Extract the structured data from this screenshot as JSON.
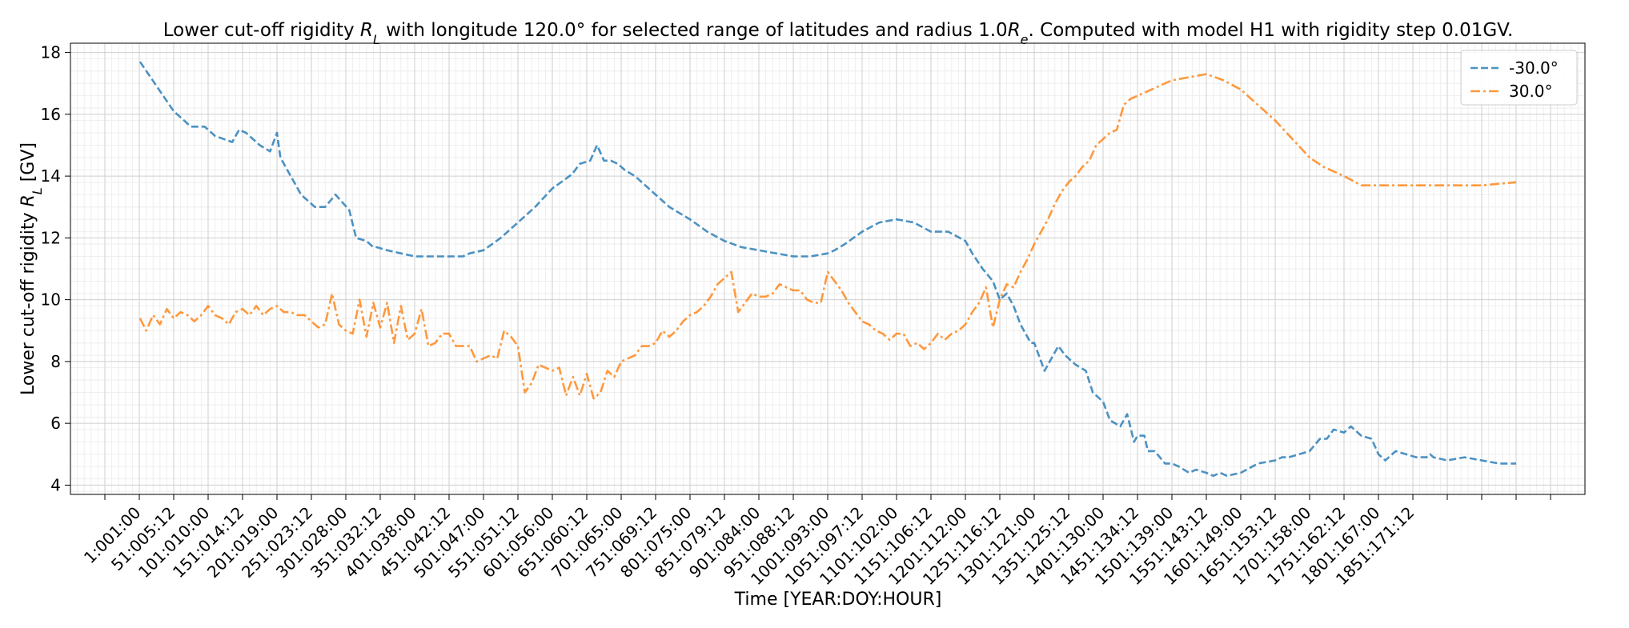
{
  "chart_data": {
    "type": "line",
    "title": "Lower cut-off rigidity R_L with longitude 120.0° for selected range of latitudes and radius 1.0R_e. Computed with model H1 with rigidity step 0.01GV.",
    "xlabel": "Time [YEAR:DOY:HOUR]",
    "ylabel": "Lower cut-off rigidity R_L [GV]",
    "xlim": [
      -100,
      2100
    ],
    "ylim": [
      3.7,
      18.3
    ],
    "grid": true,
    "legend_position": "top-right",
    "x_tick_positions": [
      1,
      51,
      101,
      151,
      201,
      251,
      301,
      351,
      401,
      451,
      501,
      551,
      601,
      651,
      701,
      751,
      801,
      851,
      901,
      951,
      1001,
      1051,
      1101,
      1151,
      1201,
      1251,
      1301,
      1351,
      1401,
      1451,
      1501,
      1551,
      1601,
      1651,
      1701,
      1751,
      1801,
      1851
    ],
    "x_tick_labels": [
      "1:001:00",
      "51:005:12",
      "101:010:00",
      "151:014:12",
      "201:019:00",
      "251:023:12",
      "301:028:00",
      "351:032:12",
      "401:038:00",
      "451:042:12",
      "501:047:00",
      "551:051:12",
      "601:056:00",
      "651:060:12",
      "701:065:00",
      "751:069:12",
      "801:075:00",
      "851:079:12",
      "901:084:00",
      "951:088:12",
      "1001:093:00",
      "1051:097:12",
      "1101:102:00",
      "1151:106:12",
      "1201:112:00",
      "1251:116:12",
      "1301:121:00",
      "1351:125:12",
      "1401:130:00",
      "1451:134:12",
      "1501:139:00",
      "1551:143:12",
      "1601:149:00",
      "1651:153:12",
      "1701:158:00",
      "1751:162:12",
      "1801:167:00",
      "1851:171:12"
    ],
    "y_ticks": [
      4,
      6,
      8,
      10,
      12,
      14,
      16,
      18
    ],
    "series": [
      {
        "name": "-30.0°",
        "color": "#1f77b4",
        "dash": "dashed",
        "x": [
          1,
          50,
          75,
          95,
          110,
          135,
          145,
          155,
          175,
          190,
          200,
          205,
          215,
          235,
          255,
          270,
          285,
          305,
          315,
          330,
          340,
          345,
          360,
          380,
          400,
          415,
          430,
          445,
          470,
          480,
          500,
          525,
          550,
          575,
          600,
          625,
          630,
          640,
          655,
          665,
          675,
          685,
          695,
          705,
          720,
          750,
          770,
          800,
          825,
          850,
          875,
          900,
          925,
          950,
          975,
          1000,
          1010,
          1025,
          1050,
          1075,
          1100,
          1125,
          1150,
          1175,
          1200,
          1210,
          1225,
          1240,
          1250,
          1260,
          1270,
          1280,
          1295,
          1300,
          1315,
          1335,
          1345,
          1360,
          1375,
          1385,
          1400,
          1410,
          1425,
          1435,
          1445,
          1450,
          1460,
          1465,
          1475,
          1490,
          1500,
          1510,
          1525,
          1535,
          1550,
          1560,
          1570,
          1580,
          1600,
          1625,
          1650,
          1660,
          1670,
          1685,
          1700,
          1715,
          1725,
          1735,
          1750,
          1760,
          1775,
          1790,
          1800,
          1810,
          1825,
          1840,
          1855,
          1870,
          1875,
          1880,
          1900,
          1925,
          1950,
          1975,
          2000
        ],
        "y": [
          17.7,
          16.1,
          15.6,
          15.6,
          15.3,
          15.1,
          15.5,
          15.4,
          15.0,
          14.8,
          15.4,
          14.6,
          14.2,
          13.4,
          13.0,
          13.0,
          13.4,
          12.9,
          12.0,
          11.9,
          11.7,
          11.7,
          11.6,
          11.5,
          11.4,
          11.4,
          11.4,
          11.4,
          11.4,
          11.5,
          11.6,
          12.0,
          12.5,
          13.0,
          13.6,
          14.0,
          14.1,
          14.4,
          14.5,
          15.0,
          14.5,
          14.5,
          14.4,
          14.2,
          14.0,
          13.4,
          13.0,
          12.6,
          12.2,
          11.9,
          11.7,
          11.6,
          11.5,
          11.4,
          11.4,
          11.5,
          11.6,
          11.8,
          12.2,
          12.5,
          12.6,
          12.5,
          12.2,
          12.2,
          11.9,
          11.5,
          11.0,
          10.6,
          10.0,
          10.2,
          9.8,
          9.2,
          8.6,
          8.6,
          7.7,
          8.5,
          8.2,
          7.9,
          7.7,
          7.0,
          6.7,
          6.1,
          5.9,
          6.3,
          5.4,
          5.6,
          5.6,
          5.1,
          5.1,
          4.7,
          4.7,
          4.6,
          4.4,
          4.5,
          4.4,
          4.3,
          4.4,
          4.3,
          4.4,
          4.7,
          4.8,
          4.9,
          4.9,
          5.0,
          5.1,
          5.5,
          5.5,
          5.8,
          5.7,
          5.9,
          5.6,
          5.5,
          5.0,
          4.8,
          5.1,
          5.0,
          4.9,
          4.9,
          5.0,
          4.9,
          4.8,
          4.9,
          4.8,
          4.7,
          4.7
        ]
      },
      {
        "name": "30.0°",
        "color": "#ff7f0e",
        "dash": "dashdot",
        "x": [
          1,
          10,
          20,
          30,
          40,
          50,
          60,
          70,
          80,
          90,
          100,
          110,
          120,
          130,
          140,
          150,
          160,
          170,
          180,
          190,
          200,
          210,
          220,
          230,
          240,
          250,
          260,
          270,
          280,
          290,
          300,
          310,
          320,
          330,
          340,
          350,
          360,
          370,
          380,
          390,
          400,
          410,
          420,
          430,
          440,
          450,
          460,
          470,
          480,
          490,
          500,
          510,
          520,
          530,
          540,
          550,
          560,
          570,
          580,
          590,
          600,
          610,
          620,
          630,
          640,
          650,
          660,
          670,
          680,
          690,
          700,
          710,
          720,
          730,
          740,
          750,
          760,
          770,
          780,
          790,
          800,
          810,
          820,
          830,
          840,
          850,
          860,
          870,
          880,
          890,
          900,
          910,
          920,
          930,
          940,
          950,
          960,
          970,
          980,
          990,
          1000,
          1010,
          1020,
          1030,
          1040,
          1050,
          1060,
          1070,
          1080,
          1090,
          1100,
          1110,
          1120,
          1130,
          1140,
          1150,
          1160,
          1170,
          1180,
          1190,
          1200,
          1210,
          1220,
          1230,
          1240,
          1250,
          1260,
          1270,
          1280,
          1290,
          1300,
          1310,
          1320,
          1330,
          1340,
          1350,
          1360,
          1370,
          1380,
          1390,
          1400,
          1410,
          1420,
          1430,
          1440,
          1450,
          1500,
          1550,
          1575,
          1600,
          1650,
          1700,
          1720,
          1750,
          1775,
          1800,
          1850,
          1900,
          1950,
          2000
        ],
        "y": [
          9.4,
          9.0,
          9.5,
          9.2,
          9.7,
          9.4,
          9.6,
          9.5,
          9.3,
          9.5,
          9.8,
          9.5,
          9.4,
          9.2,
          9.6,
          9.7,
          9.5,
          9.8,
          9.5,
          9.7,
          9.8,
          9.6,
          9.6,
          9.5,
          9.5,
          9.3,
          9.1,
          9.2,
          10.2,
          9.2,
          9.0,
          8.9,
          10.0,
          8.8,
          9.9,
          9.1,
          9.9,
          8.6,
          9.8,
          8.7,
          8.9,
          9.7,
          8.5,
          8.6,
          8.9,
          8.9,
          8.5,
          8.5,
          8.5,
          8.0,
          8.1,
          8.2,
          8.1,
          9.0,
          8.8,
          8.5,
          7.0,
          7.3,
          7.9,
          7.8,
          7.7,
          7.8,
          6.9,
          7.5,
          6.9,
          7.6,
          6.8,
          7.0,
          7.7,
          7.5,
          8.0,
          8.1,
          8.2,
          8.5,
          8.5,
          8.6,
          9.0,
          8.8,
          9.0,
          9.3,
          9.5,
          9.6,
          9.8,
          10.1,
          10.5,
          10.7,
          10.9,
          9.6,
          9.9,
          10.2,
          10.1,
          10.1,
          10.2,
          10.5,
          10.4,
          10.3,
          10.3,
          10.0,
          9.9,
          9.9,
          10.9,
          10.6,
          10.3,
          9.9,
          9.6,
          9.3,
          9.2,
          9.0,
          8.9,
          8.7,
          8.9,
          8.9,
          8.5,
          8.6,
          8.4,
          8.6,
          8.9,
          8.7,
          8.9,
          9.0,
          9.2,
          9.6,
          9.9,
          10.4,
          9.1,
          10.0,
          10.5,
          10.4,
          10.9,
          11.3,
          11.8,
          12.2,
          12.6,
          13.1,
          13.5,
          13.8,
          14.0,
          14.3,
          14.5,
          15.0,
          15.2,
          15.4,
          15.5,
          16.3,
          16.5,
          16.6,
          17.1,
          17.3,
          17.1,
          16.8,
          15.8,
          14.6,
          14.3,
          14.0,
          13.7,
          13.7,
          13.7,
          13.7,
          13.7,
          13.8
        ]
      }
    ]
  }
}
